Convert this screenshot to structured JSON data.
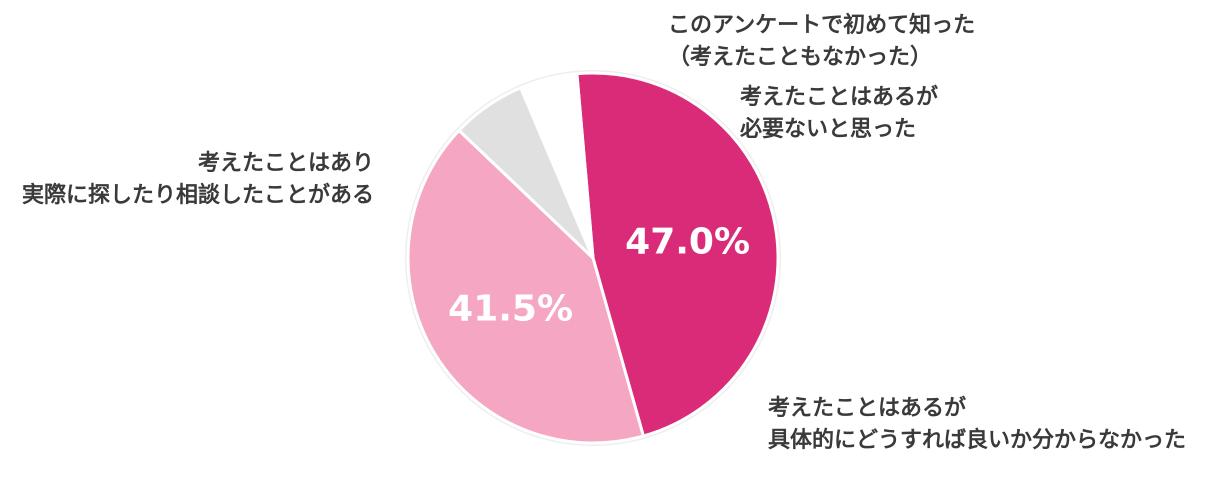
{
  "chart_data": {
    "type": "pie",
    "start_angle_deg": -5,
    "slices": [
      {
        "lines": [
          "考えたことはあるが",
          "具体的にどうすれば良いか分からなかった"
        ],
        "value": 47.0,
        "value_label": "47.0%",
        "color": "#d92b78"
      },
      {
        "lines": [
          "考えたことはあり",
          "実際に探したり相談したことがある"
        ],
        "value": 41.5,
        "value_label": "41.5%",
        "color": "#f5a6c2"
      },
      {
        "lines": [
          "このアンケートで初めて知った",
          "（考えたこともなかった）"
        ],
        "value": 6.5,
        "value_label": "",
        "color": "#e0e0e0"
      },
      {
        "lines": [
          "考えたことはあるが",
          "必要ないと思った"
        ],
        "value": 5.0,
        "value_label": "",
        "color": "#ffffff"
      }
    ]
  }
}
